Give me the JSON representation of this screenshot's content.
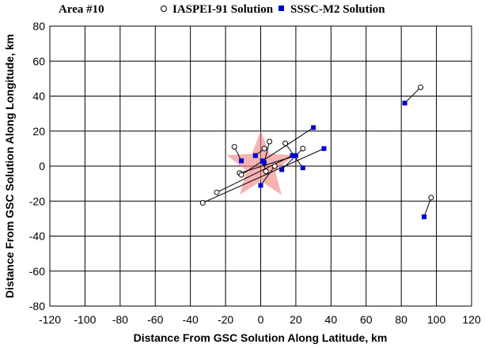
{
  "chart_data": {
    "type": "scatter",
    "title": "Area #10",
    "xlabel": "Distance From GSC Solution Along Latitude, km",
    "ylabel": "Distance From GSC Solution Along Longitude, km",
    "xlim": [
      -120,
      120
    ],
    "ylim": [
      -80,
      80
    ],
    "x_ticks": [
      "-120",
      "-100",
      "-80",
      "-60",
      "-40",
      "-20",
      "0",
      "20",
      "40",
      "60",
      "80",
      "100",
      "120"
    ],
    "y_ticks": [
      "80",
      "60",
      "40",
      "20",
      "0",
      "-20",
      "-40",
      "-60",
      "-80"
    ],
    "grid": true,
    "legend_position": "top",
    "reference": {
      "label": "GSC Solution",
      "x": 0,
      "y": 0,
      "marker": "star",
      "color": "#f08080"
    },
    "series": [
      {
        "name": "IASPEI-91 Solution",
        "marker": "open-circle",
        "color": "#000000",
        "points": [
          {
            "x": 91,
            "y": 45
          },
          {
            "x": 97,
            "y": -18
          },
          {
            "x": -33,
            "y": -21
          },
          {
            "x": -25,
            "y": -15
          },
          {
            "x": -15,
            "y": 11
          },
          {
            "x": -12,
            "y": -4
          },
          {
            "x": -11,
            "y": -5
          },
          {
            "x": 2,
            "y": 10
          },
          {
            "x": 5,
            "y": 14
          },
          {
            "x": 14,
            "y": 13
          },
          {
            "x": 24,
            "y": 10
          },
          {
            "x": 8,
            "y": 0
          },
          {
            "x": 3,
            "y": -3
          }
        ]
      },
      {
        "name": "SSSC-M2 Solution",
        "marker": "filled-square",
        "color": "#0000cc",
        "points": [
          {
            "x": 82,
            "y": 36
          },
          {
            "x": 93,
            "y": -29
          },
          {
            "x": 36,
            "y": 10
          },
          {
            "x": 18,
            "y": 6
          },
          {
            "x": -11,
            "y": 3
          },
          {
            "x": 20,
            "y": 6
          },
          {
            "x": 30,
            "y": 22
          },
          {
            "x": -3,
            "y": 6
          },
          {
            "x": 2,
            "y": 2
          },
          {
            "x": 24,
            "y": -1
          },
          {
            "x": 12,
            "y": -2
          },
          {
            "x": 0,
            "y": -11
          },
          {
            "x": 1,
            "y": 3
          }
        ]
      }
    ]
  }
}
